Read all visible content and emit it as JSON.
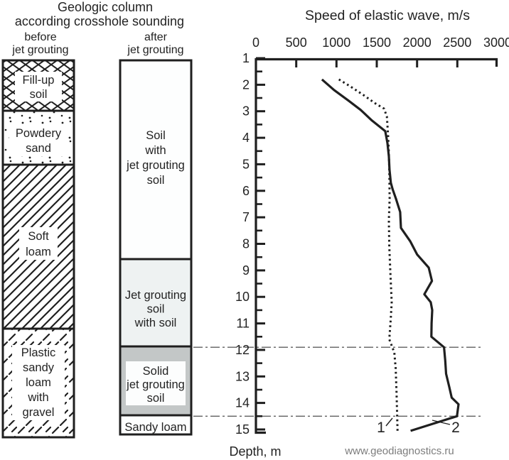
{
  "figure": {
    "column_title_line1": "Geologic column",
    "column_title_line2": "according crosshole sounding",
    "before_label_line1": "before",
    "before_label_line2": "jet grouting",
    "after_label_line1": "after",
    "after_label_line2": "jet grouting",
    "watermark": "www.geodiagnostics.ru"
  },
  "before_column": {
    "layers": [
      {
        "name": "fill-up-soil",
        "label_lines": [
          "Fill-up",
          "soil"
        ],
        "pattern": "crosshatch"
      },
      {
        "name": "powdery-sand",
        "label_lines": [
          "Powdery",
          "sand"
        ],
        "pattern": "dots"
      },
      {
        "name": "soft-loam",
        "label_lines": [
          "Soft",
          "loam"
        ],
        "pattern": "diagonal-lines"
      },
      {
        "name": "plastic-sandy-loam-with-gravel",
        "label_lines": [
          "Plastic",
          "sandy",
          "loam",
          "with",
          "gravel"
        ],
        "pattern": "diagonal-dashes"
      }
    ]
  },
  "after_column": {
    "layers": [
      {
        "name": "soil-with-jet-grouting-soil",
        "label_lines": [
          "Soil",
          "with",
          "jet grouting",
          "soil"
        ]
      },
      {
        "name": "jet-grouting-soil-with-soil",
        "label_lines": [
          "Jet grouting",
          "soil",
          "with soil"
        ]
      },
      {
        "name": "solid-jet-grouting-soil",
        "label_lines": [
          "Solid",
          "jet grouting",
          "soil"
        ]
      },
      {
        "name": "sandy-loam",
        "label_lines": [
          "Sandy loam"
        ]
      }
    ]
  },
  "chart_data": {
    "type": "line",
    "title": "Speed of elastic wave, m/s",
    "xlabel": "Speed of elastic wave, m/s",
    "ylabel": "Depth, m",
    "xlim": [
      0,
      3000
    ],
    "x_ticks": [
      0,
      500,
      1000,
      1500,
      2000,
      2500,
      3000
    ],
    "ylim": [
      1,
      15
    ],
    "depth_ticks": [
      1,
      2,
      3,
      4,
      5,
      6,
      7,
      8,
      9,
      10,
      11,
      12,
      13,
      14,
      15
    ],
    "depth_minor_step": 0.5,
    "grid": "off",
    "legend_position": "bottom-inline",
    "reference_depths_m": [
      11.9,
      14.5
    ],
    "series": [
      {
        "name": "1",
        "style": "dotted",
        "points_speed_depth": [
          [
            1030,
            1.8
          ],
          [
            1165,
            2.05
          ],
          [
            1340,
            2.4
          ],
          [
            1480,
            2.7
          ],
          [
            1590,
            2.9
          ],
          [
            1625,
            3.2
          ],
          [
            1640,
            3.9
          ],
          [
            1650,
            4.6
          ],
          [
            1655,
            5.2
          ],
          [
            1660,
            6.3
          ],
          [
            1650,
            7.1
          ],
          [
            1655,
            8.1
          ],
          [
            1670,
            9.2
          ],
          [
            1685,
            10.2
          ],
          [
            1672,
            10.9
          ],
          [
            1655,
            11.6
          ],
          [
            1718,
            12.1
          ],
          [
            1735,
            12.7
          ],
          [
            1745,
            13.6
          ],
          [
            1752,
            14.4
          ],
          [
            1758,
            15.05
          ]
        ]
      },
      {
        "name": "2",
        "style": "solid",
        "points_speed_depth": [
          [
            820,
            1.8
          ],
          [
            970,
            2.2
          ],
          [
            1150,
            2.6
          ],
          [
            1300,
            2.95
          ],
          [
            1440,
            3.35
          ],
          [
            1605,
            3.75
          ],
          [
            1632,
            4.2
          ],
          [
            1650,
            4.7
          ],
          [
            1658,
            5.2
          ],
          [
            1675,
            5.7
          ],
          [
            1698,
            5.95
          ],
          [
            1738,
            6.3
          ],
          [
            1790,
            6.8
          ],
          [
            1800,
            7.4
          ],
          [
            1915,
            7.9
          ],
          [
            2000,
            8.4
          ],
          [
            2145,
            8.9
          ],
          [
            2185,
            9.4
          ],
          [
            2090,
            9.9
          ],
          [
            2170,
            10.2
          ],
          [
            2188,
            10.5
          ],
          [
            2180,
            11.0
          ],
          [
            2178,
            11.5
          ],
          [
            2335,
            11.9
          ],
          [
            2350,
            12.4
          ],
          [
            2360,
            12.9
          ],
          [
            2400,
            13.4
          ],
          [
            2430,
            13.8
          ],
          [
            2515,
            14.05
          ],
          [
            2495,
            14.5
          ],
          [
            1920,
            15.05
          ]
        ]
      }
    ]
  },
  "colors": {
    "ink": "#1f1f1f",
    "layer_white": "#fdfefe",
    "jet_grouting_light": "#eef2f2",
    "jet_grouting_solid": "#c3c7c7",
    "reference_line": "#5f5f5f",
    "watermark": "#7d7d7d"
  }
}
